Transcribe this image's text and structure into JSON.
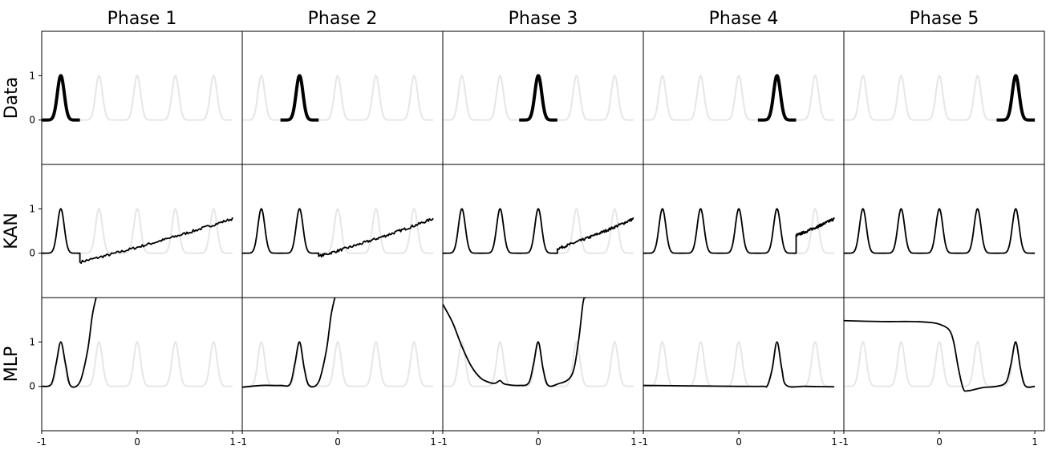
{
  "figure": {
    "columns": [
      "Phase 1",
      "Phase 2",
      "Phase 3",
      "Phase 4",
      "Phase 5"
    ],
    "rows": [
      "Data",
      "KAN",
      "MLP"
    ]
  },
  "colors": {
    "curve": "#000000",
    "background_peaks": "#e6e6e6",
    "frame": "#000000"
  },
  "chart_data": {
    "type": "line",
    "description_of_grid": "3 rows x 5 columns of line plots",
    "xlim": [
      -1,
      1.1
    ],
    "ylim": [
      -1.0,
      2.0
    ],
    "xticks": [
      -1,
      0,
      1
    ],
    "xtick_labels": [
      "-1",
      "0",
      "1"
    ],
    "yticks": [
      0,
      1
    ],
    "ytick_labels": [
      "0",
      "1"
    ],
    "background_curve": {
      "x_range": [
        -1,
        1
      ],
      "peak_centers": [
        -0.8,
        -0.4,
        0.0,
        0.4,
        0.8
      ],
      "peak_height": 1
    },
    "data_row": [
      {
        "phase": "Phase 1",
        "x_range": [
          -1.0,
          -0.6
        ],
        "peak_center": -0.8
      },
      {
        "phase": "Phase 2",
        "x_range": [
          -0.6,
          -0.2
        ],
        "peak_center": -0.4
      },
      {
        "phase": "Phase 3",
        "x_range": [
          -0.2,
          0.2
        ],
        "peak_center": 0.0
      },
      {
        "phase": "Phase 4",
        "x_range": [
          0.2,
          0.6
        ],
        "peak_center": 0.4
      },
      {
        "phase": "Phase 5",
        "x_range": [
          0.6,
          1.0
        ],
        "peak_center": 0.8
      }
    ],
    "kan_row": [
      {
        "phase": "Phase 1",
        "fitted_peaks": [
          -0.8
        ],
        "tail_start": -0.6,
        "tail_y_start": -0.2,
        "tail_y_end": 0.78
      },
      {
        "phase": "Phase 2",
        "fitted_peaks": [
          -0.8,
          -0.4
        ],
        "tail_start": -0.2,
        "tail_y_start": -0.07,
        "tail_y_end": 0.78
      },
      {
        "phase": "Phase 3",
        "fitted_peaks": [
          -0.8,
          -0.4,
          0.0
        ],
        "tail_start": 0.2,
        "tail_y_start": 0.1,
        "tail_y_end": 0.78
      },
      {
        "phase": "Phase 4",
        "fitted_peaks": [
          -0.8,
          -0.4,
          0.0,
          0.4
        ],
        "tail_start": 0.6,
        "tail_y_start": 0.4,
        "tail_y_end": 0.78
      },
      {
        "phase": "Phase 5",
        "fitted_peaks": [
          -0.8,
          -0.4,
          0.0,
          0.4,
          0.8
        ],
        "tail_start": null
      }
    ],
    "mlp_row": [
      {
        "phase": "Phase 1",
        "points": [
          [
            -1.0,
            0.0
          ],
          [
            -0.9,
            0.05
          ],
          [
            -0.85,
            0.5
          ],
          [
            -0.8,
            1.0
          ],
          [
            -0.75,
            0.5
          ],
          [
            -0.7,
            0.02
          ],
          [
            -0.6,
            0.1
          ],
          [
            -0.52,
            0.8
          ],
          [
            -0.47,
            1.6
          ],
          [
            -0.43,
            2.0
          ]
        ]
      },
      {
        "phase": "Phase 2",
        "points": [
          [
            -1.0,
            -0.02
          ],
          [
            -0.8,
            0.02
          ],
          [
            -0.6,
            0.02
          ],
          [
            -0.5,
            0.05
          ],
          [
            -0.45,
            0.5
          ],
          [
            -0.4,
            1.0
          ],
          [
            -0.35,
            0.4
          ],
          [
            -0.3,
            0.02
          ],
          [
            -0.2,
            0.1
          ],
          [
            -0.12,
            0.8
          ],
          [
            -0.07,
            1.6
          ],
          [
            -0.03,
            2.0
          ]
        ]
      },
      {
        "phase": "Phase 3",
        "points": [
          [
            -1.0,
            1.85
          ],
          [
            -0.9,
            1.45
          ],
          [
            -0.8,
            0.9
          ],
          [
            -0.7,
            0.45
          ],
          [
            -0.6,
            0.18
          ],
          [
            -0.5,
            0.08
          ],
          [
            -0.45,
            0.07
          ],
          [
            -0.4,
            0.13
          ],
          [
            -0.35,
            0.05
          ],
          [
            -0.2,
            0.02
          ],
          [
            -0.1,
            0.08
          ],
          [
            -0.05,
            0.5
          ],
          [
            0.0,
            1.0
          ],
          [
            0.05,
            0.4
          ],
          [
            0.1,
            0.03
          ],
          [
            0.2,
            0.05
          ],
          [
            0.35,
            0.25
          ],
          [
            0.42,
            1.0
          ],
          [
            0.47,
            1.9
          ],
          [
            0.5,
            2.0
          ]
        ]
      },
      {
        "phase": "Phase 4",
        "points": [
          [
            -1.0,
            0.02
          ],
          [
            -0.5,
            0.01
          ],
          [
            0.0,
            0.0
          ],
          [
            0.25,
            0.0
          ],
          [
            0.3,
            0.02
          ],
          [
            0.35,
            0.4
          ],
          [
            0.4,
            1.0
          ],
          [
            0.45,
            0.4
          ],
          [
            0.5,
            0.02
          ],
          [
            0.7,
            0.0
          ],
          [
            1.0,
            -0.01
          ]
        ]
      },
      {
        "phase": "Phase 5",
        "points": [
          [
            -1.0,
            1.48
          ],
          [
            -0.6,
            1.46
          ],
          [
            -0.3,
            1.46
          ],
          [
            -0.1,
            1.44
          ],
          [
            0.0,
            1.4
          ],
          [
            0.1,
            1.28
          ],
          [
            0.15,
            1.0
          ],
          [
            0.2,
            0.4
          ],
          [
            0.25,
            -0.05
          ],
          [
            0.3,
            -0.1
          ],
          [
            0.45,
            -0.03
          ],
          [
            0.6,
            0.0
          ],
          [
            0.7,
            0.1
          ],
          [
            0.75,
            0.5
          ],
          [
            0.8,
            1.0
          ],
          [
            0.85,
            0.4
          ],
          [
            0.9,
            0.01
          ],
          [
            1.0,
            0.0
          ]
        ]
      }
    ]
  }
}
